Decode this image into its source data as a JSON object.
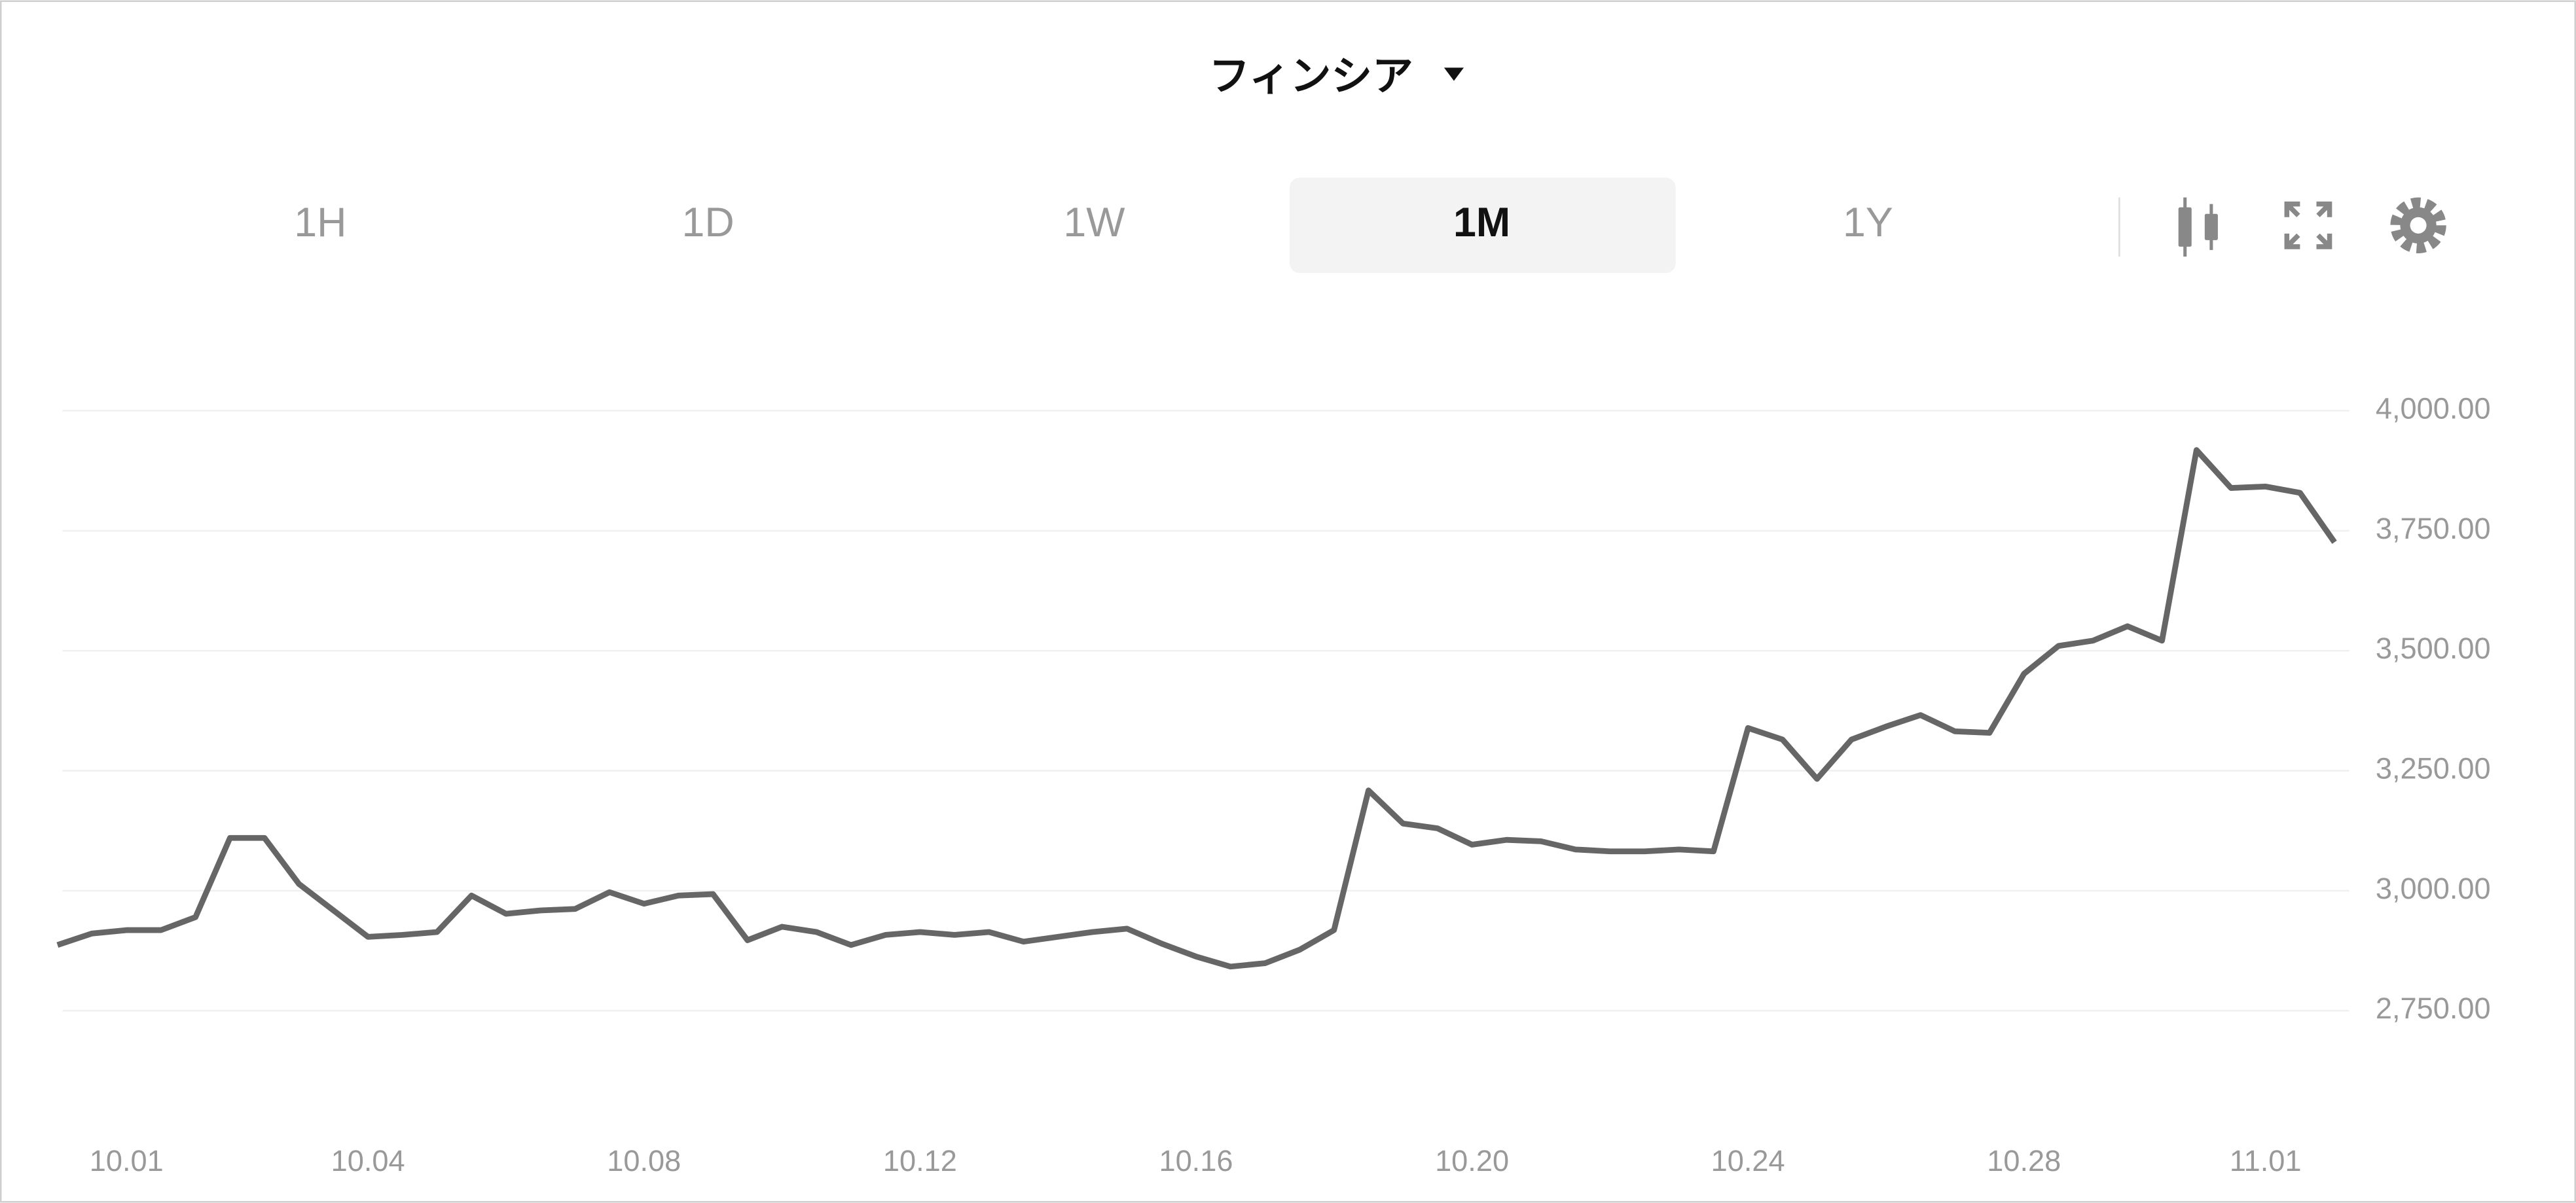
{
  "header": {
    "title": "フィンシア"
  },
  "tabs": {
    "items": [
      "1H",
      "1D",
      "1W",
      "1M",
      "1Y"
    ],
    "selected": 3
  },
  "chart_data": {
    "type": "line",
    "categories": [
      null,
      null,
      "10.01",
      null,
      null,
      null,
      null,
      null,
      null,
      "10.04",
      null,
      null,
      null,
      null,
      null,
      null,
      null,
      "10.08",
      null,
      null,
      null,
      null,
      null,
      null,
      null,
      "10.12",
      null,
      null,
      null,
      null,
      null,
      null,
      null,
      "10.16",
      null,
      null,
      null,
      null,
      null,
      null,
      null,
      "10.20",
      null,
      null,
      null,
      null,
      null,
      null,
      null,
      "10.24",
      null,
      null,
      null,
      null,
      null,
      null,
      null,
      "10.28",
      null,
      null,
      null,
      null,
      null,
      null,
      "11.01",
      null,
      null
    ],
    "series": [
      {
        "name": "フィンシア",
        "color": "#666666",
        "values": [
          2887,
          2911,
          2918,
          2918,
          2945,
          3110,
          3110,
          3014,
          2959,
          2904,
          2908,
          2914,
          2990,
          2952,
          2959,
          2962,
          2997,
          2973,
          2990,
          2993,
          2897,
          2925,
          2914,
          2887,
          2908,
          2914,
          2908,
          2914,
          2894,
          2904,
          2914,
          2921,
          2890,
          2863,
          2842,
          2849,
          2877,
          2918,
          3209,
          3140,
          3130,
          3096,
          3106,
          3103,
          3086,
          3082,
          3082,
          3086,
          3082,
          3339,
          3315,
          3233,
          3315,
          3342,
          3366,
          3332,
          3329,
          3452,
          3510,
          3521,
          3551,
          3521,
          3918,
          3839,
          3842,
          3829,
          3726
        ]
      }
    ],
    "ylim": [
      2600,
      4150
    ],
    "yticks": [
      {
        "value": 2750,
        "label": "2,750.00"
      },
      {
        "value": 3000,
        "label": "3,000.00"
      },
      {
        "value": 3250,
        "label": "3,250.00"
      },
      {
        "value": 3500,
        "label": "3,500.00"
      },
      {
        "value": 3750,
        "label": "3,750.00"
      },
      {
        "value": 4000,
        "label": "4,000.00"
      }
    ],
    "grid": true
  }
}
